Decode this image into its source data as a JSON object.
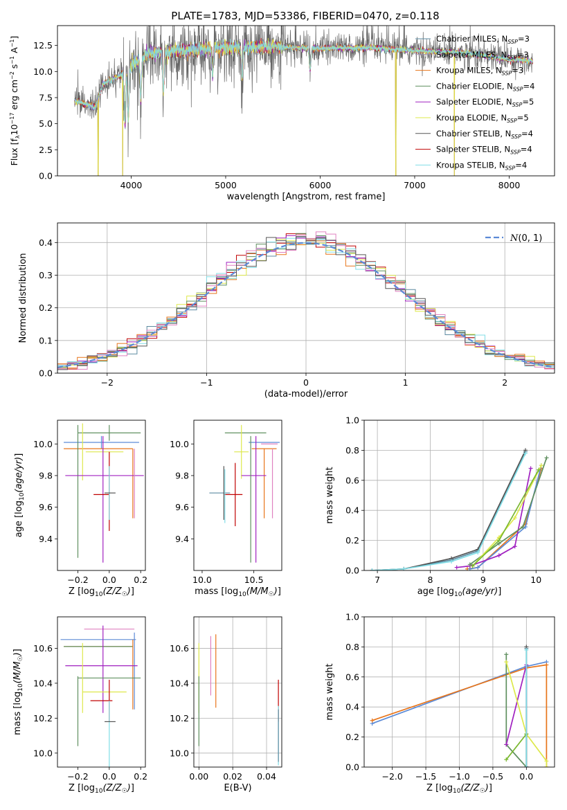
{
  "figure_title": "PLATE=1783, MJD=53386, FIBERID=0470, z=0.118",
  "series_meta": [
    {
      "name": "Chabrier MILES, N_SSP=3",
      "color": "#5b8aa0",
      "nssp": "3",
      "label": "Chabrier MILES, N"
    },
    {
      "name": "Salpeter MILES, N_SSP=3",
      "color": "#9b8fb0",
      "nssp": "3",
      "label": "Salpeter MILES, N"
    },
    {
      "name": "Kroupa MILES, N_SSP=3",
      "color": "#e8751a",
      "nssp": "3",
      "label": "Kroupa MILES, N"
    },
    {
      "name": "Chabrier ELODIE, N_SSP=4",
      "color": "#5f8f5f",
      "nssp": "4",
      "label": "Chabrier ELODIE, N"
    },
    {
      "name": "Salpeter ELODIE, N_SSP=5",
      "color": "#a020c0",
      "nssp": "5",
      "label": "Salpeter ELODIE, N"
    },
    {
      "name": "Kroupa ELODIE, N_SSP=5",
      "color": "#dde84a",
      "nssp": "5",
      "label": "Kroupa ELODIE, N"
    },
    {
      "name": "Chabrier STELIB, N_SSP=4",
      "color": "#555555",
      "nssp": "4",
      "label": "Chabrier STELIB, N"
    },
    {
      "name": "Salpeter STELIB, N_SSP=4",
      "color": "#c00000",
      "nssp": "4",
      "label": "Salpeter STELIB, N"
    },
    {
      "name": "Kroupa STELIB, N_SSP=4",
      "color": "#80dde6",
      "nssp": "4",
      "label": "Kroupa STELIB, N"
    }
  ],
  "chart_data": [
    {
      "id": "spectrum",
      "type": "line",
      "title": "PLATE=1783, MJD=53386, FIBERID=0470, z=0.118",
      "xlabel": "wavelength [Angstrom, rest frame]",
      "ylabel": "Flux [f_λ 10^-17 erg cm^-2 s^-1 A^-1]",
      "xlim": [
        3220,
        8480
      ],
      "ylim": [
        0,
        14.4
      ],
      "xticks": [
        4000,
        5000,
        6000,
        7000,
        8000
      ],
      "yticks": [
        0.0,
        2.5,
        5.0,
        7.5,
        10.0,
        12.5
      ],
      "legend": "right",
      "grid": false,
      "spectrum_range": [
        3400,
        8250
      ],
      "continuum_points": [
        [
          3400,
          7.2
        ],
        [
          3620,
          6.6
        ],
        [
          3700,
          8.8
        ],
        [
          3900,
          9.7
        ],
        [
          4000,
          10.5
        ],
        [
          4200,
          11.8
        ],
        [
          4500,
          12.0
        ],
        [
          5000,
          12.3
        ],
        [
          5500,
          12.4
        ],
        [
          6000,
          12.2
        ],
        [
          6500,
          12.3
        ],
        [
          7000,
          12.0
        ],
        [
          7500,
          11.8
        ],
        [
          8000,
          11.2
        ],
        [
          8250,
          11.0
        ]
      ],
      "absorption_features": [
        [
          3934,
          4.5
        ],
        [
          3969,
          5.0
        ],
        [
          4102,
          7.0
        ],
        [
          4340,
          7.5
        ],
        [
          4861,
          9.5
        ],
        [
          5175,
          9.0
        ],
        [
          5893,
          9.8
        ]
      ],
      "drop_to_zero": [
        3650,
        3910,
        6800,
        7420
      ],
      "spike_range": [
        3900,
        5600
      ]
    },
    {
      "id": "residuals",
      "type": "histogram",
      "xlabel": "(data-model)/error",
      "ylabel": "Normed distribution",
      "xlim": [
        -2.5,
        2.5
      ],
      "ylim": [
        0,
        0.46
      ],
      "xticks": [
        -2,
        -1,
        0,
        1,
        2
      ],
      "yticks": [
        0.0,
        0.1,
        0.2,
        0.3,
        0.4
      ],
      "grid": true,
      "legend": "top-right",
      "normal_label": "N(0,1)",
      "normal_color": "#5b8ad6",
      "bin_width": 0.1,
      "bin_start": -2.5,
      "histogram_colors": [
        "#5b8aa0",
        "#c00000",
        "#a020c0",
        "#dde84a",
        "#5f8f5f",
        "#e8751a",
        "#80dde6",
        "#e080c0",
        "#555555"
      ]
    },
    {
      "id": "age_vs_Z",
      "type": "scatter",
      "xlabel": "Z [log10(Z/Z☉)]",
      "ylabel": "age [log10(age/yr)]",
      "xlim": [
        -0.33,
        0.23
      ],
      "ylim": [
        9.2,
        10.15
      ],
      "xticks": [
        -0.2,
        0.0,
        0.2
      ],
      "yticks": [
        9.4,
        9.6,
        9.8,
        10.0
      ],
      "grid": false,
      "points": [
        {
          "x": -0.05,
          "y": 10.01,
          "xerr": 0.24,
          "yerr": 0.04,
          "color": "#5b8ad6"
        },
        {
          "x": 0.0,
          "y": 10.07,
          "xerr": 0.2,
          "yerr": 0.05,
          "color": "#5f8f5f"
        },
        {
          "x": 0.15,
          "y": 9.75,
          "xerr": 0.0,
          "yerr": 0.22,
          "color": "#e8751a"
        },
        {
          "x": -0.07,
          "y": 9.97,
          "xerr": 0.22,
          "yerr": 0.0,
          "color": "#e8751a"
        },
        {
          "x": -0.03,
          "y": 9.95,
          "xerr": 0.12,
          "yerr": 0.0,
          "color": "#dde84a"
        },
        {
          "x": -0.17,
          "y": 9.95,
          "xerr": 0.0,
          "yerr": 0.18,
          "color": "#dde84a"
        },
        {
          "x": -0.2,
          "y": 9.7,
          "xerr": 0.0,
          "yerr": 0.42,
          "color": "#5f8f5f"
        },
        {
          "x": -0.03,
          "y": 9.8,
          "xerr": 0.25,
          "yerr": 0.0,
          "color": "#a020c0"
        },
        {
          "x": -0.04,
          "y": 9.65,
          "xerr": 0.0,
          "yerr": 0.4,
          "color": "#a020c0"
        },
        {
          "x": 0.0,
          "y": 9.7,
          "xerr": 0.0,
          "yerr": 0.25,
          "color": "#c00000"
        },
        {
          "x": -0.05,
          "y": 9.68,
          "xerr": 0.05,
          "yerr": 0.0,
          "color": "#c00000"
        },
        {
          "x": 0.0,
          "y": 9.69,
          "xerr": 0.0,
          "yerr": 0.17,
          "color": "#80dde6"
        },
        {
          "x": 0.005,
          "y": 9.69,
          "xerr": 0.035,
          "yerr": 0.0,
          "color": "#555555"
        },
        {
          "x": 0.16,
          "y": 9.75,
          "xerr": 0.0,
          "yerr": 0.22,
          "color": "#e080c0"
        }
      ]
    },
    {
      "id": "age_vs_mass",
      "type": "scatter",
      "xlabel": "mass [log10(M/M☉)]",
      "ylabel": "",
      "xlim": [
        9.92,
        10.77
      ],
      "ylim": [
        9.2,
        10.15
      ],
      "xticks": [
        10.0,
        10.5
      ],
      "yticks": [
        9.4,
        9.6,
        9.8,
        10.0
      ],
      "grid": false,
      "points": [
        {
          "x": 10.42,
          "y": 10.07,
          "xerr": 0.2,
          "yerr": 0.0,
          "color": "#5f8f5f"
        },
        {
          "x": 10.6,
          "y": 10.01,
          "xerr": 0.15,
          "yerr": 0.0,
          "color": "#5b8ad6"
        },
        {
          "x": 10.6,
          "y": 9.97,
          "xerr": 0.12,
          "yerr": 0.0,
          "color": "#e8751a"
        },
        {
          "x": 10.65,
          "y": 10.0,
          "xerr": 0.08,
          "yerr": 0.0,
          "color": "#e080c0"
        },
        {
          "x": 10.68,
          "y": 9.75,
          "xerr": 0.0,
          "yerr": 0.22,
          "color": "#e080c0"
        },
        {
          "x": 10.6,
          "y": 9.75,
          "xerr": 0.0,
          "yerr": 0.22,
          "color": "#e8751a"
        },
        {
          "x": 10.38,
          "y": 9.95,
          "xerr": 0.07,
          "yerr": 0.0,
          "color": "#dde84a"
        },
        {
          "x": 10.38,
          "y": 9.95,
          "xerr": 0.0,
          "yerr": 0.17,
          "color": "#dde84a"
        },
        {
          "x": 10.5,
          "y": 9.8,
          "xerr": 0.12,
          "yerr": 0.0,
          "color": "#a020c0"
        },
        {
          "x": 10.52,
          "y": 9.65,
          "xerr": 0.0,
          "yerr": 0.4,
          "color": "#a020c0"
        },
        {
          "x": 10.47,
          "y": 9.65,
          "xerr": 0.0,
          "yerr": 0.4,
          "color": "#5f8f5f"
        },
        {
          "x": 10.3,
          "y": 9.68,
          "xerr": 0.09,
          "yerr": 0.0,
          "color": "#c00000"
        },
        {
          "x": 10.32,
          "y": 9.68,
          "xerr": 0.0,
          "yerr": 0.2,
          "color": "#c00000"
        },
        {
          "x": 10.17,
          "y": 9.69,
          "xerr": 0.1,
          "yerr": 0.0,
          "color": "#5b8aa0"
        },
        {
          "x": 10.21,
          "y": 9.69,
          "xerr": 0.0,
          "yerr": 0.17,
          "color": "#555555"
        },
        {
          "x": 10.22,
          "y": 9.67,
          "xerr": 0.0,
          "yerr": 0.17,
          "color": "#80dde6"
        }
      ]
    },
    {
      "id": "massweight_vs_age",
      "type": "line",
      "xlabel": "age [log10(age/yr)]",
      "ylabel": "mass weight",
      "xlim": [
        6.75,
        10.35
      ],
      "ylim": [
        0,
        1.0
      ],
      "xticks": [
        7,
        8,
        9,
        10
      ],
      "yticks": [
        0.0,
        0.2,
        0.4,
        0.6,
        0.8,
        1.0
      ],
      "grid": true,
      "series": [
        {
          "color": "#5b8aa0",
          "x": [
            6.9,
            7.5,
            8.4,
            8.9,
            9.8
          ],
          "y": [
            0.0,
            0.01,
            0.07,
            0.13,
            0.79
          ]
        },
        {
          "color": "#555555",
          "x": [
            6.9,
            7.5,
            8.4,
            8.9,
            9.8
          ],
          "y": [
            0.0,
            0.01,
            0.08,
            0.14,
            0.8
          ]
        },
        {
          "color": "#80dde6",
          "x": [
            6.9,
            7.5,
            8.4,
            8.9,
            9.8
          ],
          "y": [
            0.0,
            0.01,
            0.06,
            0.12,
            0.78
          ]
        },
        {
          "color": "#e8751a",
          "x": [
            8.7,
            8.9,
            9.8,
            10.1
          ],
          "y": [
            0.01,
            0.02,
            0.31,
            0.68
          ]
        },
        {
          "color": "#5b8ad6",
          "x": [
            8.75,
            8.9,
            9.8,
            10.1
          ],
          "y": [
            0.01,
            0.02,
            0.29,
            0.7
          ]
        },
        {
          "color": "#a020c0",
          "x": [
            8.5,
            8.75,
            9.3,
            9.6,
            9.9
          ],
          "y": [
            0.02,
            0.03,
            0.1,
            0.16,
            0.68
          ]
        },
        {
          "color": "#5f8f5f",
          "x": [
            8.75,
            9.3,
            9.75,
            10.2
          ],
          "y": [
            0.04,
            0.18,
            0.29,
            0.75
          ]
        },
        {
          "color": "#dde84a",
          "x": [
            8.8,
            9.3,
            9.6,
            10.1
          ],
          "y": [
            0.03,
            0.22,
            0.35,
            0.7
          ]
        },
        {
          "color": "#7ab830",
          "x": [
            8.8,
            9.3,
            10.05
          ],
          "y": [
            0.03,
            0.2,
            0.67
          ]
        }
      ]
    },
    {
      "id": "mass_vs_Z",
      "type": "scatter",
      "xlabel": "Z [log10(Z/Z☉)]",
      "ylabel": "mass [log10(M/M☉)]",
      "xlim": [
        -0.33,
        0.23
      ],
      "ylim": [
        9.92,
        10.78
      ],
      "xticks": [
        -0.2,
        0.0,
        0.2
      ],
      "yticks": [
        10.0,
        10.2,
        10.4,
        10.6
      ],
      "grid": false,
      "points": [
        {
          "x": 0.0,
          "y": 10.71,
          "xerr": 0.16,
          "yerr": 0.0,
          "color": "#e080c0"
        },
        {
          "x": -0.07,
          "y": 10.65,
          "xerr": 0.24,
          "yerr": 0.0,
          "color": "#5b8ad6"
        },
        {
          "x": -0.07,
          "y": 10.61,
          "xerr": 0.22,
          "yerr": 0.0,
          "color": "#e8751a"
        },
        {
          "x": -0.07,
          "y": 10.61,
          "xerr": 0.22,
          "yerr": 0.0,
          "color": "#5f8f5f"
        },
        {
          "x": 0.15,
          "y": 10.45,
          "xerr": 0.0,
          "yerr": 0.2,
          "color": "#e8751a"
        },
        {
          "x": 0.16,
          "y": 10.47,
          "xerr": 0.0,
          "yerr": 0.22,
          "color": "#5b8ad6"
        },
        {
          "x": -0.05,
          "y": 10.5,
          "xerr": 0.23,
          "yerr": 0.0,
          "color": "#a020c0"
        },
        {
          "x": -0.04,
          "y": 10.48,
          "xerr": 0.0,
          "yerr": 0.25,
          "color": "#a020c0"
        },
        {
          "x": 0.0,
          "y": 10.43,
          "xerr": 0.2,
          "yerr": 0.0,
          "color": "#5f8f5f"
        },
        {
          "x": -0.2,
          "y": 10.24,
          "xerr": 0.0,
          "yerr": 0.2,
          "color": "#5f8f5f"
        },
        {
          "x": -0.17,
          "y": 10.43,
          "xerr": 0.0,
          "yerr": 0.2,
          "color": "#dde84a"
        },
        {
          "x": -0.03,
          "y": 10.35,
          "xerr": 0.14,
          "yerr": 0.0,
          "color": "#dde84a"
        },
        {
          "x": -0.05,
          "y": 10.3,
          "xerr": 0.07,
          "yerr": 0.0,
          "color": "#c00000"
        },
        {
          "x": 0.0,
          "y": 10.3,
          "xerr": 0.0,
          "yerr": 0.12,
          "color": "#c00000"
        },
        {
          "x": 0.0,
          "y": 10.1,
          "xerr": 0.0,
          "yerr": 0.2,
          "color": "#80dde6"
        },
        {
          "x": 0.005,
          "y": 10.18,
          "xerr": 0.035,
          "yerr": 0.0,
          "color": "#555555"
        }
      ]
    },
    {
      "id": "mass_vs_EBV",
      "type": "scatter",
      "xlabel": "E(B-V)",
      "ylabel": "",
      "xlim": [
        -0.003,
        0.049
      ],
      "ylim": [
        9.92,
        10.78
      ],
      "xticks": [
        0.0,
        0.02,
        0.04
      ],
      "yticks": [
        10.0,
        10.2,
        10.4,
        10.6
      ],
      "grid": true,
      "points": [
        {
          "x": 0.007,
          "y": 10.5,
          "xerr": 0.0,
          "yerr": 0.17,
          "color": "#e080c0"
        },
        {
          "x": 0.01,
          "y": 10.47,
          "xerr": 0.0,
          "yerr": 0.21,
          "color": "#e8751a"
        },
        {
          "x": 0.0,
          "y": 10.43,
          "xerr": 0.0,
          "yerr": 0.2,
          "color": "#dde84a"
        },
        {
          "x": 0.0,
          "y": 10.24,
          "xerr": 0.0,
          "yerr": 0.2,
          "color": "#5f8f5f"
        },
        {
          "x": 0.047,
          "y": 10.3,
          "xerr": 0.0,
          "yerr": 0.12,
          "color": "#c00000"
        },
        {
          "x": 0.047,
          "y": 10.1,
          "xerr": 0.0,
          "yerr": 0.17,
          "color": "#80dde6"
        },
        {
          "x": 0.047,
          "y": 10.1,
          "xerr": 0.0,
          "yerr": 0.15,
          "color": "#5b8aa0"
        }
      ]
    },
    {
      "id": "massweight_vs_Z",
      "type": "line",
      "xlabel": "Z [log10(Z/Z☉)]",
      "ylabel": "mass weight",
      "xlim": [
        -2.42,
        0.42
      ],
      "ylim": [
        0,
        1.0
      ],
      "xticks": [
        -2.0,
        -1.5,
        -1.0,
        -0.5,
        0.0
      ],
      "yticks": [
        0.0,
        0.2,
        0.4,
        0.6,
        0.8,
        1.0
      ],
      "grid": true,
      "series": [
        {
          "color": "#5b8ad6",
          "x": [
            -2.3,
            0.0,
            0.3
          ],
          "y": [
            0.29,
            0.67,
            0.7
          ]
        },
        {
          "color": "#e8751a",
          "x": [
            -2.3,
            0.0,
            0.3,
            0.3
          ],
          "y": [
            0.31,
            0.66,
            0.68,
            0.0
          ]
        },
        {
          "color": "#5f8f5f",
          "x": [
            -0.3,
            -0.3,
            0.0
          ],
          "y": [
            0.75,
            0.15,
            0.0
          ]
        },
        {
          "color": "#a020c0",
          "x": [
            -0.3,
            0.0,
            0.0
          ],
          "y": [
            0.15,
            0.68,
            0.0
          ]
        },
        {
          "color": "#dde84a",
          "x": [
            -0.3,
            0.0,
            0.3,
            0.3
          ],
          "y": [
            0.7,
            0.22,
            0.04,
            0.0
          ]
        },
        {
          "color": "#7ab830",
          "x": [
            -0.3,
            0.0,
            0.0
          ],
          "y": [
            0.05,
            0.22,
            0.0
          ]
        },
        {
          "color": "#5b8aa0",
          "x": [
            0.0,
            0.0
          ],
          "y": [
            0.79,
            0.0
          ]
        },
        {
          "color": "#555555",
          "x": [
            0.0,
            0.0
          ],
          "y": [
            0.8,
            0.0
          ]
        },
        {
          "color": "#80dde6",
          "x": [
            0.0,
            0.0
          ],
          "y": [
            0.78,
            0.0
          ]
        }
      ]
    }
  ]
}
